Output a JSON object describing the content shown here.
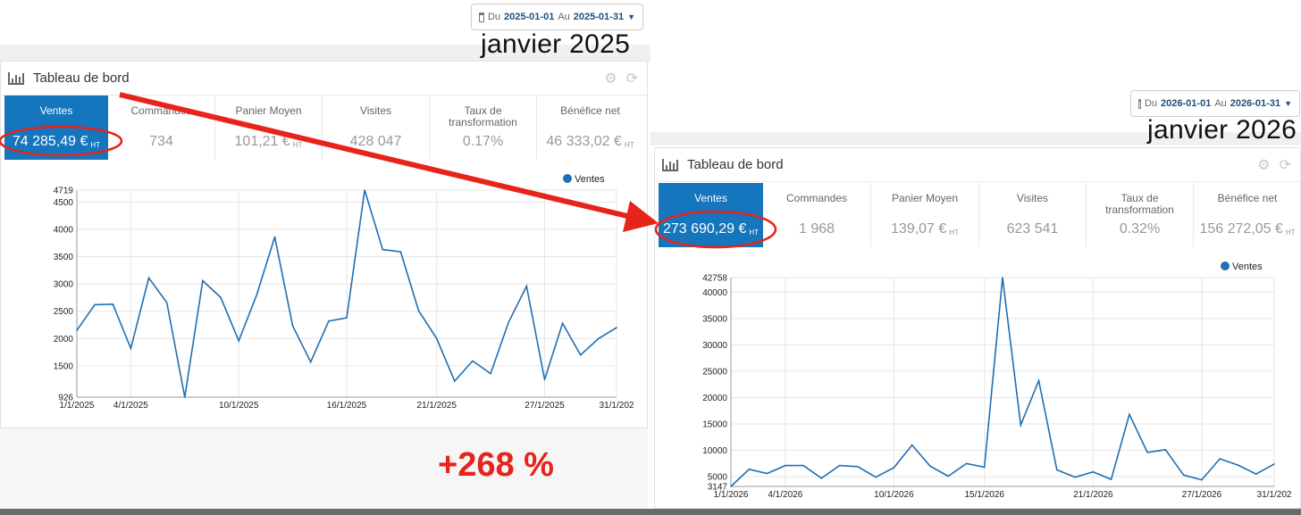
{
  "colors": {
    "accent": "#1575bd",
    "line": "#1f6fb2",
    "annotation": "#e8231a"
  },
  "left": {
    "date_range": {
      "prefix": "Du",
      "from": "2025-01-01",
      "sep": "Au",
      "to": "2025-01-31"
    },
    "period_label": "janvier 2025",
    "panel_title": "Tableau de bord",
    "kpis": [
      {
        "label": "Ventes",
        "value": "74 285,49 €",
        "suffix": "HT"
      },
      {
        "label": "Commandes",
        "value": "734",
        "suffix": ""
      },
      {
        "label": "Panier Moyen",
        "value": "101,21 €",
        "suffix": "HT"
      },
      {
        "label": "Visites",
        "value": "428 047",
        "suffix": ""
      },
      {
        "label": "Taux de transformation",
        "value": "0.17%",
        "suffix": ""
      },
      {
        "label": "Bénéfice net",
        "value": "46 333,02 €",
        "suffix": "HT"
      }
    ],
    "chart_data": {
      "type": "line",
      "legend": "Ventes",
      "x_tick_labels": [
        "1/1/2025",
        "4/1/2025",
        "10/1/2025",
        "16/1/2025",
        "21/1/2025",
        "27/1/2025",
        "31/1/202"
      ],
      "y_tick_labels": [
        "926",
        "1500",
        "2000",
        "2500",
        "3000",
        "3500",
        "4000",
        "4500",
        "4719"
      ],
      "ylim": [
        926,
        4719
      ],
      "x": [
        1,
        2,
        3,
        4,
        5,
        6,
        7,
        8,
        9,
        10,
        11,
        12,
        13,
        14,
        15,
        16,
        17,
        18,
        19,
        20,
        21,
        22,
        23,
        24,
        25,
        26,
        27,
        28,
        29,
        30,
        31
      ],
      "values": [
        2150,
        2620,
        2630,
        1820,
        3110,
        2660,
        926,
        3060,
        2750,
        1960,
        2800,
        3860,
        2230,
        1570,
        2320,
        2380,
        4719,
        3630,
        3590,
        2510,
        2000,
        1220,
        1590,
        1360,
        2300,
        2960,
        1250,
        2280,
        1700,
        2000,
        2200
      ]
    }
  },
  "right": {
    "date_range": {
      "prefix": "Du",
      "from": "2026-01-01",
      "sep": "Au",
      "to": "2026-01-31"
    },
    "period_label": "janvier 2026",
    "panel_title": "Tableau de bord",
    "kpis": [
      {
        "label": "Ventes",
        "value": "273 690,29 €",
        "suffix": "HT"
      },
      {
        "label": "Commandes",
        "value": "1 968",
        "suffix": ""
      },
      {
        "label": "Panier Moyen",
        "value": "139,07 €",
        "suffix": "HT"
      },
      {
        "label": "Visites",
        "value": "623 541",
        "suffix": ""
      },
      {
        "label": "Taux de transformation",
        "value": "0.32%",
        "suffix": ""
      },
      {
        "label": "Bénéfice net",
        "value": "156 272,05 €",
        "suffix": "HT"
      }
    ],
    "chart_data": {
      "type": "line",
      "legend": "Ventes",
      "x_tick_labels": [
        "1/1/2026",
        "4/1/2026",
        "10/1/2026",
        "15/1/2026",
        "21/1/2026",
        "27/1/2026",
        "31/1/202"
      ],
      "y_tick_labels": [
        "3147",
        "5000",
        "10000",
        "15000",
        "20000",
        "25000",
        "30000",
        "35000",
        "40000",
        "42758"
      ],
      "ylim": [
        3147,
        42758
      ],
      "x": [
        1,
        2,
        3,
        4,
        5,
        6,
        7,
        8,
        9,
        10,
        11,
        12,
        13,
        14,
        15,
        16,
        17,
        18,
        19,
        20,
        21,
        22,
        23,
        24,
        25,
        26,
        27,
        28,
        29,
        30,
        31
      ],
      "values": [
        3147,
        6400,
        5600,
        7100,
        7100,
        4700,
        7100,
        6900,
        4900,
        6700,
        11000,
        7000,
        5100,
        7500,
        6800,
        42758,
        14800,
        23200,
        6300,
        4900,
        5900,
        4500,
        16800,
        9600,
        10100,
        5300,
        4400,
        8400,
        7200,
        5500,
        7400
      ]
    }
  },
  "annotation": {
    "growth": "+268 %"
  }
}
